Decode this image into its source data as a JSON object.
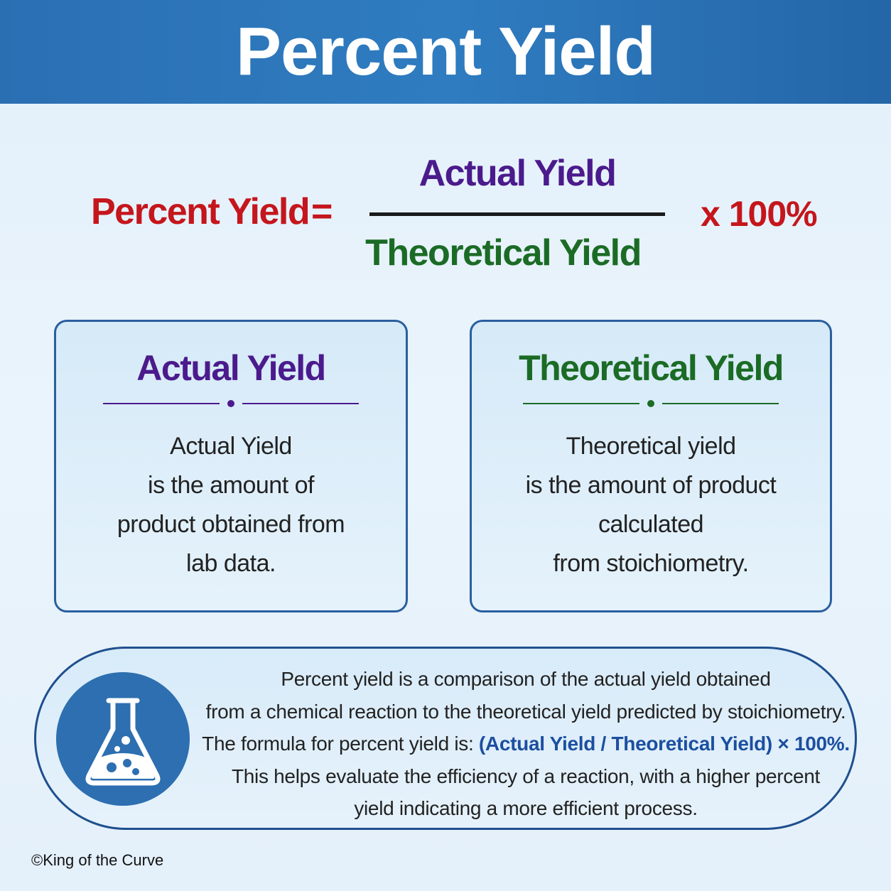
{
  "title": "Percent Yield",
  "formula": {
    "lhs": "Percent Yield",
    "equals": "=",
    "numerator": "Actual Yield",
    "denominator": "Theoretical Yield",
    "multiplier": "x 100%"
  },
  "cards": {
    "actual": {
      "heading": "Actual Yield",
      "lines": [
        "Actual Yield",
        "is the amount of",
        "product obtained from",
        "lab data."
      ]
    },
    "theoretical": {
      "heading": "Theoretical Yield",
      "lines": [
        "Theoretical yield",
        "is the amount of product",
        "calculated",
        "from stoichiometry."
      ]
    }
  },
  "summary": {
    "icon": "flask-icon",
    "line1": "Percent yield is a comparison of the actual yield obtained",
    "line2": "from a chemical reaction to the theoretical yield predicted by stoichiometry.",
    "line3_prefix": "The formula for percent yield is: ",
    "line3_formula": "(Actual Yield / Theoretical Yield) × 100%.",
    "line4": "This helps evaluate the efficiency of a reaction, with a higher percent",
    "line5": "yield indicating a more efficient process."
  },
  "footer": "©King of the Curve",
  "colors": {
    "banner": "#2f7cc0",
    "percent_yield": "#c4161c",
    "actual_yield": "#4b1a8c",
    "theoretical_yield": "#1b6b25",
    "border": "#2a5f9e"
  }
}
